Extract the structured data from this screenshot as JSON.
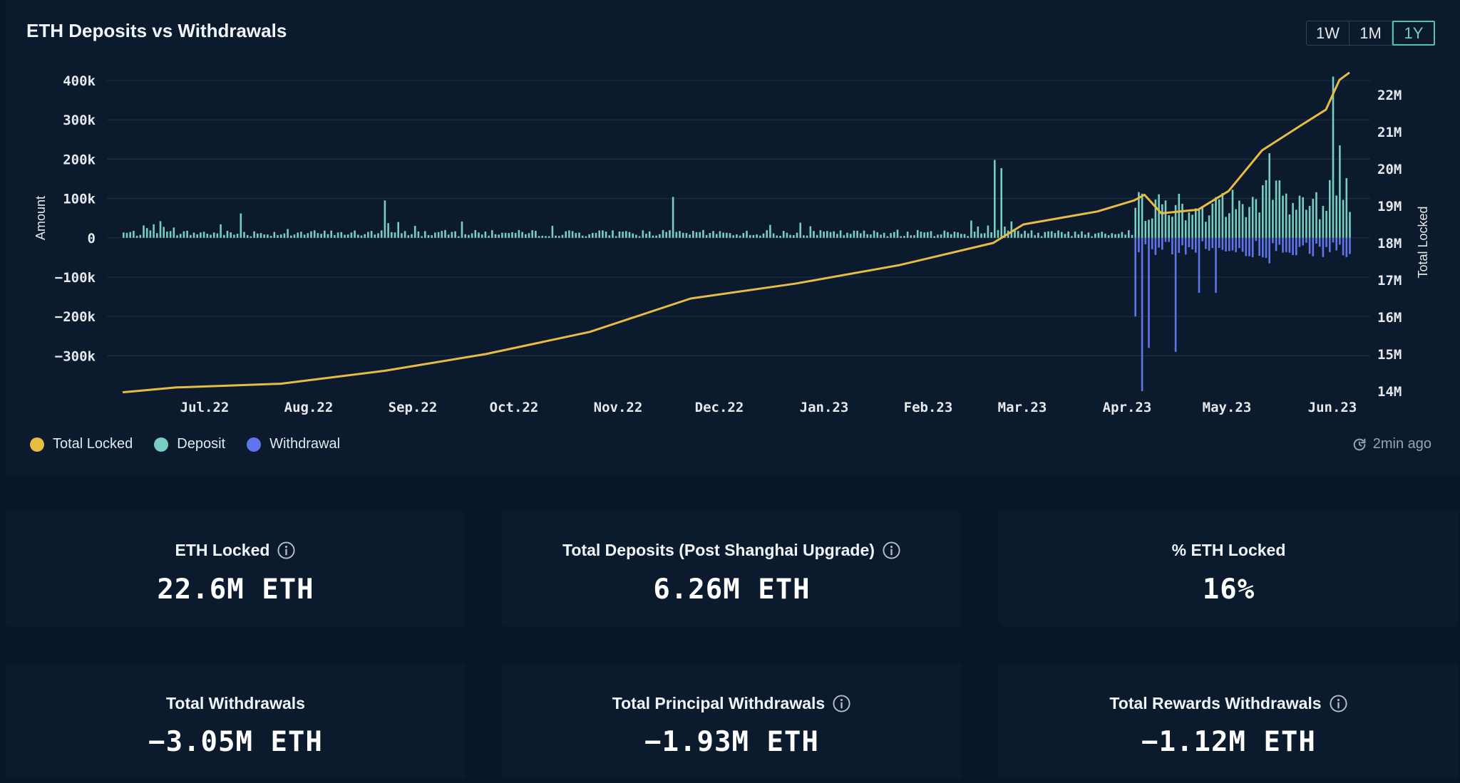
{
  "card": {
    "title": "ETH Deposits vs Withdrawals",
    "ranges": [
      "1W",
      "1M",
      "1Y"
    ],
    "active_range": "1Y"
  },
  "legend": [
    {
      "label": "Total Locked",
      "color": "#e8bb45"
    },
    {
      "label": "Deposit",
      "color": "#77cdbf"
    },
    {
      "label": "Withdrawal",
      "color": "#6274ea"
    }
  ],
  "refresh": {
    "label": "2min ago",
    "icon": "refresh-icon"
  },
  "chart_data": {
    "type": "bar+line",
    "ylabel": "Amount",
    "y2label": "Total Locked",
    "y_ticks": [
      "400k",
      "300k",
      "200k",
      "100k",
      "0",
      "−100k",
      "−200k",
      "−300k"
    ],
    "y2_ticks": [
      "22M",
      "21M",
      "20M",
      "19M",
      "18M",
      "17M",
      "16M",
      "15M",
      "14M"
    ],
    "x_ticks": [
      "Jul.22",
      "Aug.22",
      "Sep.22",
      "Oct.22",
      "Nov.22",
      "Dec.22",
      "Jan.23",
      "Feb.23",
      "Mar.23",
      "Apr.23",
      "May.23",
      "Jun.23"
    ],
    "ylim": [
      -400000,
      400000
    ],
    "y2lim": [
      14000000,
      22500000
    ],
    "grid": true,
    "legend_position": "bottom-left",
    "total_locked": {
      "name": "Total Locked",
      "points": [
        [
          "2022-06-15",
          13.97
        ],
        [
          "2022-07-01",
          14.1
        ],
        [
          "2022-08-01",
          14.2
        ],
        [
          "2022-09-01",
          14.55
        ],
        [
          "2022-10-01",
          15.0
        ],
        [
          "2022-11-01",
          15.6
        ],
        [
          "2022-12-01",
          16.5
        ],
        [
          "2023-01-01",
          16.9
        ],
        [
          "2023-02-01",
          17.4
        ],
        [
          "2023-03-01",
          18.0
        ],
        [
          "2023-03-10",
          18.5
        ],
        [
          "2023-04-01",
          18.85
        ],
        [
          "2023-04-12",
          19.15
        ],
        [
          "2023-04-15",
          19.3
        ],
        [
          "2023-04-20",
          18.8
        ],
        [
          "2023-05-01",
          18.9
        ],
        [
          "2023-05-10",
          19.4
        ],
        [
          "2023-05-20",
          20.5
        ],
        [
          "2023-06-01",
          21.2
        ],
        [
          "2023-06-08",
          21.6
        ],
        [
          "2023-06-12",
          22.4
        ],
        [
          "2023-06-15",
          22.6
        ]
      ]
    },
    "deposit_notable": [
      {
        "date": "2022-07-20",
        "value": 62000
      },
      {
        "date": "2022-09-01",
        "value": 95000
      },
      {
        "date": "2022-11-25",
        "value": 104000
      },
      {
        "date": "2023-03-01",
        "value": 198000
      },
      {
        "date": "2023-03-03",
        "value": 177000
      },
      {
        "date": "2023-05-22",
        "value": 215000
      },
      {
        "date": "2023-06-10",
        "value": 410000
      },
      {
        "date": "2023-06-12",
        "value": 235000
      }
    ],
    "withdrawal_notable": [
      {
        "date": "2023-04-12",
        "value": -200000
      },
      {
        "date": "2023-04-14",
        "value": -390000
      },
      {
        "date": "2023-04-16",
        "value": -280000
      },
      {
        "date": "2023-04-24",
        "value": -290000
      },
      {
        "date": "2023-05-01",
        "value": -140000
      },
      {
        "date": "2023-05-06",
        "value": -140000
      },
      {
        "date": "2023-05-22",
        "value": -65000
      }
    ]
  },
  "stats": [
    {
      "title": "ETH Locked",
      "value": "22.6M ETH",
      "info": true
    },
    {
      "title": "Total Deposits (Post Shanghai Upgrade)",
      "value": "6.26M ETH",
      "info": true
    },
    {
      "title": "% ETH Locked",
      "value": "16%",
      "info": false
    },
    {
      "title": "Total Withdrawals",
      "value": "−3.05M ETH",
      "info": false
    },
    {
      "title": "Total Principal Withdrawals",
      "value": "−1.93M ETH",
      "info": true
    },
    {
      "title": "Total Rewards Withdrawals",
      "value": "−1.12M ETH",
      "info": true
    }
  ]
}
